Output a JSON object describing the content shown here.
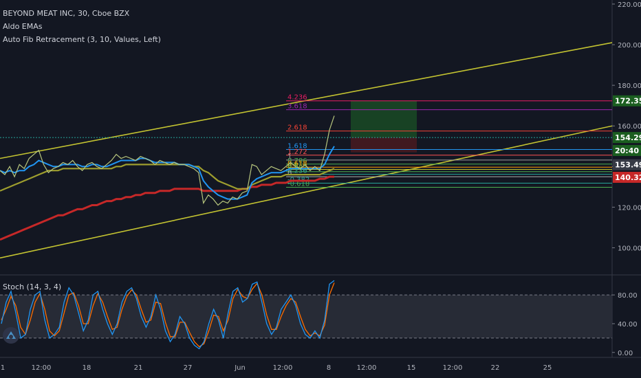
{
  "legend": {
    "symbol": "BEYOND MEAT INC, 30, Cboe BZX",
    "indicator1": "Aldo EMAs",
    "indicator2": "Auto Fib Retracement (3, 10, Values, Left)"
  },
  "stoch": {
    "label": "Stoch (14, 3, 4)"
  },
  "colors": {
    "background": "#131722",
    "channel": "#c4c431",
    "ema_long": "#c62828",
    "ema_mid": "#9e9e2e",
    "ema_fast": "#2196f3",
    "price": "#b8c77e",
    "stoch_k": "#2196f3",
    "stoch_d": "#ff6d00",
    "band": "#2a2e39"
  },
  "chart_data": [
    {
      "type": "line",
      "name": "price",
      "y_axis_ticks": [
        "220.00",
        "200.00",
        "180.00",
        "160.00",
        "140.00",
        "120.00",
        "100.00"
      ],
      "ylim": [
        88,
        222
      ],
      "x_axis_ticks": [
        "1",
        "12:00",
        "18",
        "21",
        "27",
        "Jun",
        "12:00",
        "8",
        "12:00",
        "15",
        "12:00",
        "22",
        "25"
      ],
      "price_tags": [
        {
          "value": "172.35",
          "color": "#1b5e20",
          "level": 172.35
        },
        {
          "value": "154.29",
          "color": "#1b5e20",
          "level": 154.29
        },
        {
          "value": "20:40",
          "color": "#1b5e20",
          "level": 147.9
        },
        {
          "value": "153.49",
          "color": "#363a45",
          "level": 140.9
        },
        {
          "value": "140.32",
          "color": "#c62828",
          "level": 134.7
        }
      ],
      "fib_levels": [
        {
          "label": "4.236",
          "value": 172.35,
          "color": "#e91e63"
        },
        {
          "label": "3.618",
          "value": 168.0,
          "color": "#9c27b0"
        },
        {
          "label": "2.618",
          "value": 157.5,
          "color": "#f44336"
        },
        {
          "label": "1.618",
          "value": 148.4,
          "color": "#2196f3"
        },
        {
          "label": "1.272",
          "value": 145.6,
          "color": "#ff5252"
        },
        {
          "label": "1",
          "value": 143.2,
          "color": "#9e9e9e"
        },
        {
          "label": "0.786",
          "value": 141.2,
          "color": "#4caf50"
        },
        {
          "label": "0.618",
          "value": 139.7,
          "color": "#ff9800"
        },
        {
          "label": "0.5",
          "value": 138.6,
          "color": "#c4c431"
        },
        {
          "label": "0.382",
          "value": 137.5,
          "color": "#4caf50"
        },
        {
          "label": "0.236",
          "value": 136.2,
          "color": "#26a69a"
        },
        {
          "label": "0",
          "value": 135.0,
          "color": "#b0b0b0"
        },
        {
          "label": "-0.382",
          "value": 131.8,
          "color": "#26a69a"
        },
        {
          "label": "-0.618",
          "value": 129.8,
          "color": "#4caf50"
        }
      ],
      "position_box": {
        "entry": 154.29,
        "target": 172.35,
        "stop": 147.0
      },
      "series": [
        {
          "name": "price",
          "values": [
            138,
            136,
            140,
            135,
            141,
            139,
            144,
            146,
            148,
            141,
            137,
            139,
            140,
            142,
            141,
            143,
            140,
            138,
            141,
            142,
            140,
            139,
            141,
            143,
            146,
            144,
            145,
            144,
            143,
            145,
            144,
            143,
            141,
            143,
            142,
            141,
            142,
            141,
            141,
            140,
            139,
            137,
            122,
            126,
            124,
            121,
            123,
            122,
            125,
            124,
            127,
            128,
            141,
            140,
            136,
            138,
            140,
            139,
            138,
            140,
            142,
            140,
            139,
            141,
            138,
            140,
            138,
            146,
            158,
            165
          ]
        },
        {
          "name": "ema_fast",
          "values": [
            138,
            137,
            138,
            137,
            138,
            138,
            140,
            141,
            143,
            142,
            141,
            140,
            140,
            141,
            141,
            141,
            141,
            140,
            140,
            141,
            141,
            140,
            140,
            141,
            142,
            143,
            143,
            143,
            143,
            144,
            144,
            143,
            142,
            142,
            142,
            142,
            142,
            141,
            141,
            141,
            140,
            139,
            133,
            130,
            128,
            126,
            125,
            124,
            124,
            124,
            125,
            126,
            132,
            134,
            135,
            136,
            137,
            137,
            137,
            138,
            139,
            139,
            139,
            139,
            139,
            139,
            139,
            141,
            146,
            150
          ]
        },
        {
          "name": "ema_mid",
          "values": [
            128,
            129,
            130,
            131,
            132,
            133,
            134,
            135,
            136,
            137,
            138,
            138,
            138,
            139,
            139,
            139,
            139,
            139,
            139,
            139,
            139,
            139,
            139,
            139,
            140,
            140,
            141,
            141,
            141,
            141,
            141,
            141,
            141,
            141,
            141,
            141,
            141,
            141,
            141,
            141,
            140,
            140,
            138,
            137,
            135,
            133,
            132,
            131,
            130,
            129,
            129,
            129,
            131,
            132,
            133,
            134,
            135,
            135,
            135,
            136,
            136,
            136,
            136,
            136,
            136,
            136,
            136,
            137,
            138,
            139
          ]
        },
        {
          "name": "ema_long",
          "values": [
            104,
            105,
            106,
            107,
            108,
            109,
            110,
            111,
            112,
            113,
            114,
            115,
            116,
            116,
            117,
            118,
            119,
            119,
            120,
            121,
            121,
            122,
            123,
            123,
            124,
            124,
            125,
            125,
            126,
            126,
            127,
            127,
            127,
            128,
            128,
            128,
            129,
            129,
            129,
            129,
            129,
            129,
            128,
            128,
            128,
            128,
            128,
            128,
            128,
            128,
            129,
            129,
            130,
            130,
            131,
            131,
            131,
            132,
            132,
            132,
            133,
            133,
            133,
            133,
            133,
            133,
            134,
            134,
            135,
            135
          ]
        }
      ],
      "channel": {
        "upper": [
          [
            0,
            144
          ],
          [
            1,
            201
          ]
        ],
        "lower": [
          [
            0,
            95
          ],
          [
            1,
            160
          ]
        ]
      }
    },
    {
      "type": "line",
      "name": "stochastic",
      "y_axis_ticks": [
        "80.00",
        "40.00",
        "0.00"
      ],
      "ylim": [
        -5,
        105
      ],
      "bands": [
        20,
        80
      ],
      "series": [
        {
          "name": "k",
          "values": [
            40,
            70,
            85,
            55,
            20,
            25,
            60,
            80,
            85,
            45,
            20,
            25,
            35,
            70,
            90,
            80,
            55,
            30,
            45,
            80,
            85,
            60,
            40,
            25,
            40,
            70,
            85,
            90,
            75,
            50,
            35,
            50,
            80,
            60,
            30,
            15,
            25,
            50,
            40,
            20,
            10,
            5,
            15,
            40,
            60,
            45,
            20,
            55,
            85,
            90,
            70,
            75,
            95,
            98,
            70,
            40,
            25,
            35,
            60,
            70,
            80,
            65,
            40,
            25,
            20,
            30,
            20,
            45,
            95,
            100
          ]
        },
        {
          "name": "d",
          "values": [
            45,
            60,
            78,
            65,
            35,
            25,
            45,
            70,
            82,
            60,
            30,
            23,
            30,
            55,
            80,
            83,
            65,
            40,
            40,
            65,
            82,
            70,
            50,
            32,
            35,
            60,
            78,
            87,
            80,
            60,
            42,
            45,
            70,
            68,
            42,
            22,
            22,
            42,
            42,
            28,
            15,
            8,
            12,
            30,
            52,
            50,
            30,
            45,
            75,
            88,
            78,
            75,
            88,
            96,
            80,
            52,
            32,
            32,
            50,
            65,
            75,
            70,
            50,
            32,
            23,
            27,
            23,
            38,
            80,
            97
          ]
        }
      ]
    }
  ]
}
